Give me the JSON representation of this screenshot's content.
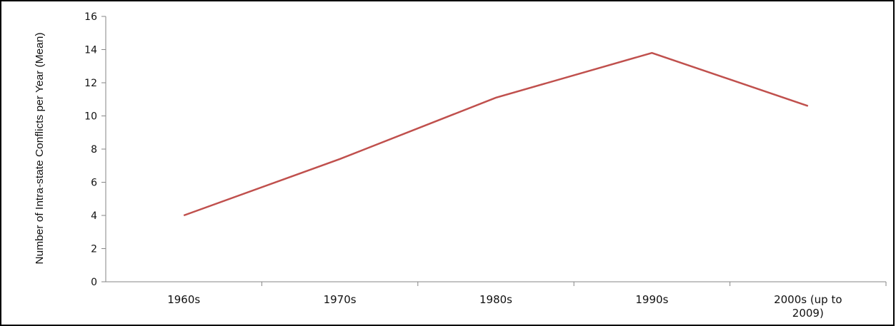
{
  "chart_data": {
    "type": "line",
    "title": "",
    "xlabel": "",
    "ylabel": "Number of Intra-state Conflicts per Year (Mean)",
    "categories": [
      [
        "1960s"
      ],
      [
        "1970s"
      ],
      [
        "1980s"
      ],
      [
        "1990s"
      ],
      [
        "2000s (up to",
        "2009)"
      ]
    ],
    "series": [
      {
        "values": [
          4.0,
          7.4,
          11.1,
          13.8,
          10.6
        ],
        "color": "#c0504d"
      }
    ],
    "ylim": [
      0,
      16
    ],
    "yticks": [
      0,
      2,
      4,
      6,
      8,
      10,
      12,
      14,
      16
    ],
    "grid": false,
    "legend": "none"
  }
}
